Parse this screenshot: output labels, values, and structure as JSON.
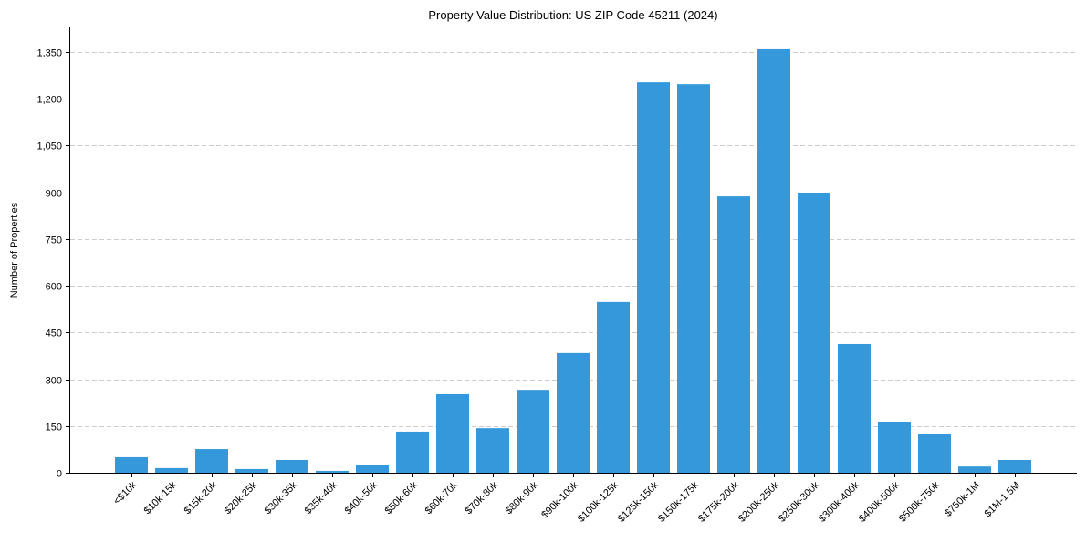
{
  "chart_data": {
    "type": "bar",
    "title": "Property Value Distribution: US ZIP Code 45211 (2024)",
    "xlabel": "",
    "ylabel": "Number of Properties",
    "ylim": [
      0,
      1420
    ],
    "yticks": [
      0,
      150,
      300,
      450,
      600,
      750,
      900,
      1050,
      1200,
      1350
    ],
    "ytick_labels": [
      "0",
      "150",
      "300",
      "450",
      "600",
      "750",
      "900",
      "1,050",
      "1,200",
      "1,350"
    ],
    "grid": "horizontal dashed",
    "categories": [
      "<$10k",
      "$10k-15k",
      "$15k-20k",
      "$20k-25k",
      "$30k-35k",
      "$35k-40k",
      "$40k-50k",
      "$50k-60k",
      "$60k-70k",
      "$70k-80k",
      "$80k-90k",
      "$90k-100k",
      "$100k-125k",
      "$125k-150k",
      "$150k-175k",
      "$175k-200k",
      "$200k-250k",
      "$250k-300k",
      "$300k-400k",
      "$400k-500k",
      "$500k-750k",
      "$750k-1M",
      "$1M-1.5M"
    ],
    "values": [
      50,
      15,
      76,
      12,
      41,
      6,
      26,
      132,
      252,
      143,
      266,
      384,
      548,
      1253,
      1247,
      887,
      1359,
      899,
      413,
      164,
      123,
      20,
      41
    ],
    "bar_color": "#3498db"
  }
}
